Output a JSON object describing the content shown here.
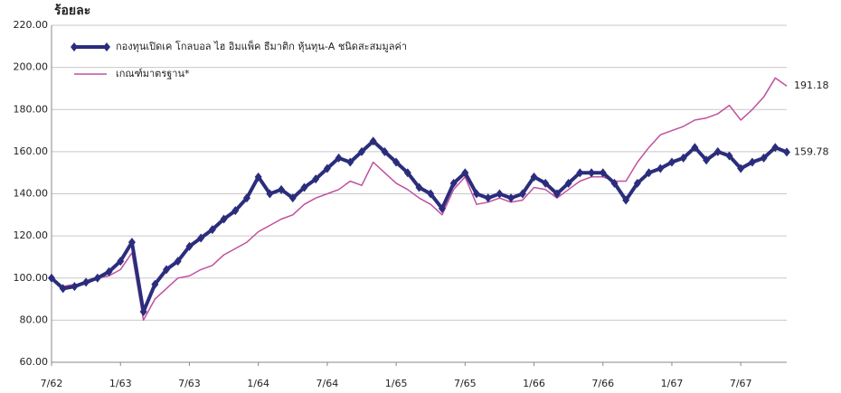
{
  "chart_data": {
    "type": "line",
    "y_label": "ร้อยละ",
    "categories": [
      "7/62",
      null,
      null,
      null,
      null,
      null,
      "1/63",
      null,
      null,
      null,
      null,
      null,
      "7/63",
      null,
      null,
      null,
      null,
      null,
      "1/64",
      null,
      null,
      null,
      null,
      null,
      "7/64",
      null,
      null,
      null,
      null,
      null,
      "1/65",
      null,
      null,
      null,
      null,
      null,
      "7/65",
      null,
      null,
      null,
      null,
      null,
      "1/66",
      null,
      null,
      null,
      null,
      null,
      "7/66",
      null,
      null,
      null,
      null,
      null,
      "1/67",
      null,
      null,
      null,
      null,
      null,
      "7/67",
      null,
      null,
      null,
      null
    ],
    "series": [
      {
        "name": "กองทุนเปิดเค โกลบอล ไฮ อิมแพ็ค ธีมาติก หุ้นทุน-A ชนิดสะสมมูลค่า",
        "color": "#2b2d7c",
        "values": [
          100,
          95,
          96,
          98,
          100,
          103,
          108,
          117,
          84,
          97,
          104,
          108,
          115,
          119,
          123,
          128,
          132,
          138,
          148,
          140,
          142,
          138,
          143,
          147,
          152,
          157,
          155,
          160,
          165,
          160,
          155,
          150,
          143,
          140,
          133,
          145,
          150,
          140,
          138,
          140,
          138,
          140,
          148,
          145,
          140,
          145,
          150,
          150,
          150,
          145,
          137,
          145,
          150,
          152,
          155,
          157,
          162,
          156,
          160,
          158,
          152,
          155,
          157,
          162,
          159.78
        ]
      },
      {
        "name": "เกณฑ์มาตรฐาน*",
        "color": "#c050a0",
        "values": [
          100,
          96,
          97,
          97,
          100,
          101,
          104,
          112,
          80,
          90,
          95,
          100,
          101,
          104,
          106,
          111,
          114,
          117,
          122,
          125,
          128,
          130,
          135,
          138,
          140,
          142,
          146,
          144,
          155,
          150,
          145,
          142,
          138,
          135,
          130,
          142,
          148,
          135,
          136,
          138,
          136,
          137,
          143,
          142,
          138,
          142,
          146,
          148,
          148,
          146,
          146,
          155,
          162,
          168,
          170,
          172,
          175,
          176,
          178,
          182,
          175,
          180,
          186,
          195,
          191.18
        ]
      }
    ],
    "ylim": [
      60,
      220
    ],
    "yticks": [
      {
        "value": 60,
        "label": "60.00"
      },
      {
        "value": 80,
        "label": "80.00"
      },
      {
        "value": 100,
        "label": "100.00"
      },
      {
        "value": 120,
        "label": "120.00"
      },
      {
        "value": 140,
        "label": "140.00"
      },
      {
        "value": 160,
        "label": "160.00"
      },
      {
        "value": 180,
        "label": "180.00"
      },
      {
        "value": 200,
        "label": "200.00"
      },
      {
        "value": 220,
        "label": "220.00"
      }
    ],
    "grid": true
  }
}
